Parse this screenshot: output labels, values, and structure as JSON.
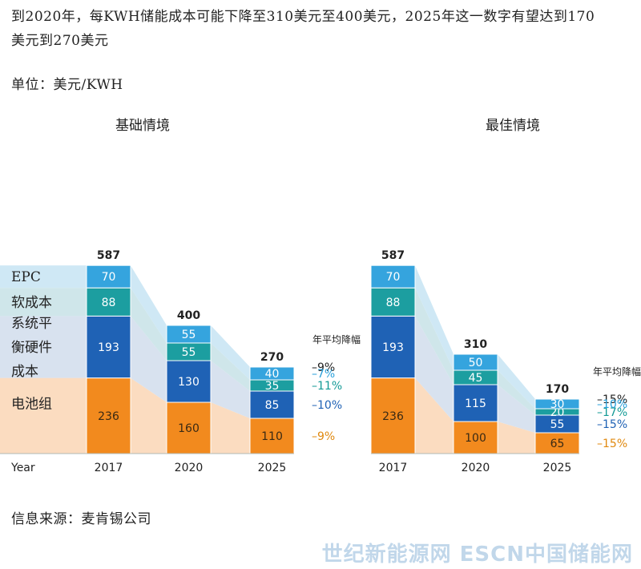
{
  "headline": "到2020年，每KWH储能成本可能下降至310美元至400美元，2025年这一数字有望达到170美元到270美元",
  "unit_label": "单位：美元/KWH",
  "source_label": "信息来源：麦肯锡公司",
  "watermark": "世纪新能源网 ESCN中国储能网",
  "colors": {
    "epc": "#35a4de",
    "soft": "#1c9ea0",
    "hardware": "#1f62b5",
    "battery": "#f28a1e",
    "band_epc": "#cfe8f5",
    "band_soft": "#cfe6ea",
    "band_hardware": "#d8e2ef",
    "band_battery": "#fbdcc0",
    "rate_epc": "#29a0db",
    "rate_soft": "#139a96",
    "rate_hardware": "#1f62b5",
    "rate_battery": "#e0890f",
    "rate_total": "#222222"
  },
  "chart_data": [
    {
      "type": "bar",
      "stacked": true,
      "title": "基础情境",
      "x_axis_label": "Year",
      "categories": [
        "2017",
        "2020",
        "2025"
      ],
      "series": [
        {
          "name": "电池组",
          "key": "battery",
          "values": [
            236,
            160,
            110
          ]
        },
        {
          "name": "系统平衡硬件成本",
          "key": "hardware",
          "values": [
            193,
            130,
            85
          ]
        },
        {
          "name": "软成本",
          "key": "soft",
          "values": [
            88,
            55,
            35
          ]
        },
        {
          "name": "EPC",
          "key": "epc",
          "values": [
            70,
            55,
            40
          ]
        }
      ],
      "totals": [
        587,
        400,
        270
      ],
      "annual_decline_title": "年平均降幅",
      "annual_decline": {
        "total": "–9%",
        "epc": "–7%",
        "soft": "–11%",
        "hardware": "–10%",
        "battery": "–9%"
      },
      "ylim": [
        0,
        600
      ]
    },
    {
      "type": "bar",
      "stacked": true,
      "title": "最佳情境",
      "categories": [
        "2017",
        "2020",
        "2025"
      ],
      "series": [
        {
          "name": "电池组",
          "key": "battery",
          "values": [
            236,
            100,
            65
          ]
        },
        {
          "name": "系统平衡硬件成本",
          "key": "hardware",
          "values": [
            193,
            115,
            55
          ]
        },
        {
          "name": "软成本",
          "key": "soft",
          "values": [
            88,
            45,
            20
          ]
        },
        {
          "name": "EPC",
          "key": "epc",
          "values": [
            70,
            50,
            30
          ]
        }
      ],
      "totals": [
        587,
        310,
        170
      ],
      "annual_decline_title": "年平均降幅",
      "annual_decline": {
        "total": "–15%",
        "epc": "–10%",
        "soft": "–17%",
        "hardware": "–15%",
        "battery": "–15%"
      },
      "ylim": [
        0,
        600
      ]
    }
  ],
  "legend": [
    {
      "key": "epc",
      "lines": [
        "EPC"
      ]
    },
    {
      "key": "soft",
      "lines": [
        "软成本"
      ]
    },
    {
      "key": "hardware",
      "lines": [
        "系统平",
        "衡硬件",
        "成本"
      ]
    },
    {
      "key": "battery",
      "lines": [
        "电池组"
      ]
    }
  ]
}
